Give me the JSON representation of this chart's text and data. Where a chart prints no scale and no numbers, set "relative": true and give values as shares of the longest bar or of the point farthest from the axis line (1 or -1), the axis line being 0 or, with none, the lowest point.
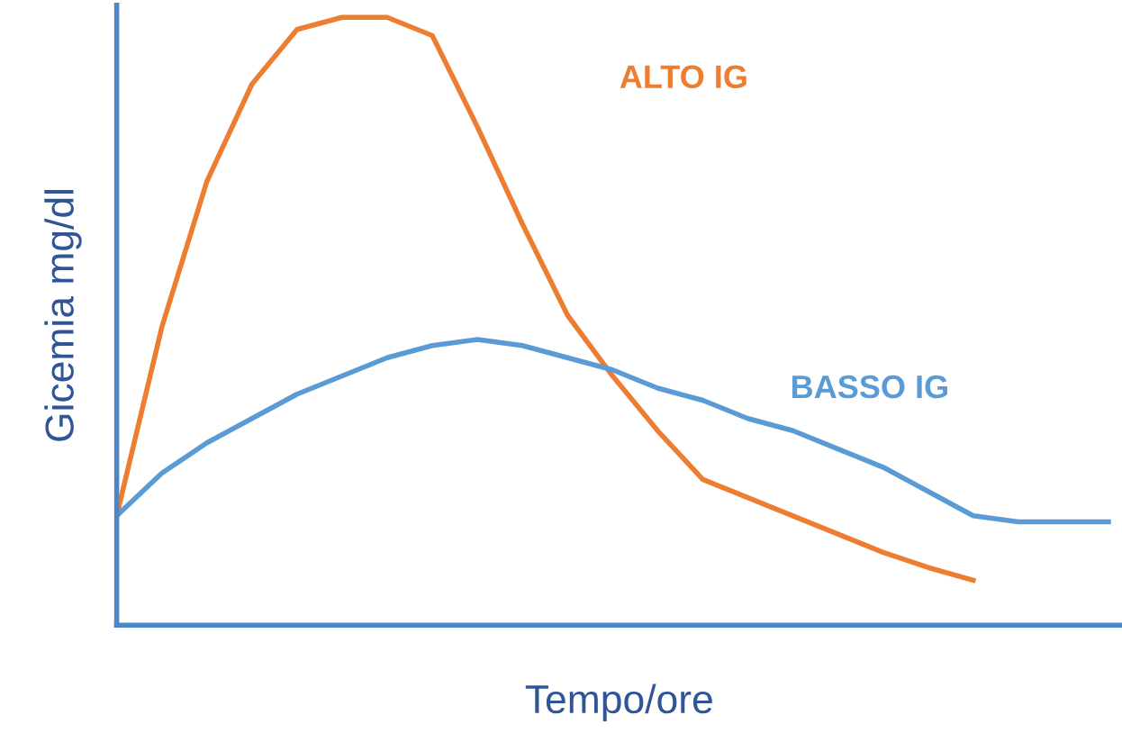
{
  "chart_data": {
    "type": "line",
    "relative": true,
    "xlabel": "Tempo/ore",
    "ylabel": "Gicemia mg/dl",
    "categories": [
      null,
      null,
      null,
      null,
      null,
      null,
      null,
      null,
      null,
      null,
      null,
      null,
      null,
      null,
      null,
      null,
      null,
      null,
      null,
      null,
      null,
      null,
      null
    ],
    "grid": false,
    "legend": false,
    "marker": "none",
    "line_style": "solid",
    "series": [
      {
        "name": "ALTO IG",
        "color": "#ed7d31",
        "values": [
          0.18,
          0.49,
          0.73,
          0.89,
          0.98,
          1.0,
          1.0,
          0.97,
          0.82,
          0.66,
          0.51,
          0.41,
          0.32,
          0.24,
          0.21,
          0.18,
          0.15,
          0.12,
          0.095,
          0.074,
          null,
          null,
          null
        ]
      },
      {
        "name": "BASSO IG",
        "color": "#5b9bd5",
        "values": [
          0.18,
          0.25,
          0.3,
          0.34,
          0.38,
          0.41,
          0.44,
          0.46,
          0.47,
          0.46,
          0.44,
          0.42,
          0.39,
          0.37,
          0.34,
          0.32,
          0.29,
          0.26,
          0.22,
          0.18,
          0.17,
          0.17,
          0.17
        ]
      }
    ]
  }
}
